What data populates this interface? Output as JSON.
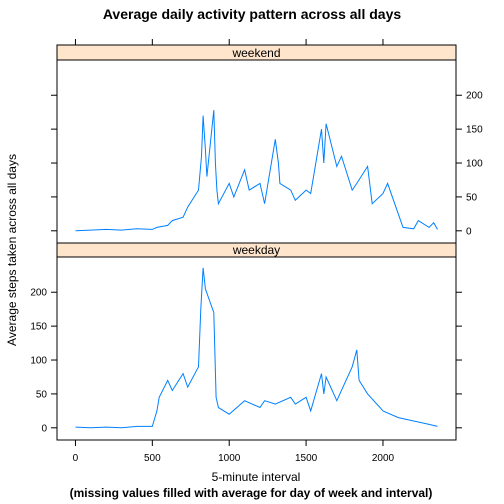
{
  "chart_data": {
    "type": "line",
    "title": "Average daily activity pattern across all days",
    "xlabel": "5-minute interval",
    "ylabel": "Average steps taken across all days",
    "caption": "(missing values filled with average for day of week and interval)",
    "xlim": [
      -120,
      2475
    ],
    "ylim": [
      -18,
      252
    ],
    "x_ticks": [
      0,
      500,
      1000,
      1500,
      2000
    ],
    "y_ticks": [
      0,
      50,
      100,
      150,
      200
    ],
    "line_color": "#0080ff",
    "strip_color": "#ffe5cc",
    "panels": [
      {
        "name": "weekend",
        "y_axis_side": "right",
        "x": [
          0,
          100,
          200,
          300,
          400,
          500,
          530,
          600,
          630,
          700,
          730,
          800,
          820,
          830,
          845,
          855,
          900,
          910,
          920,
          930,
          1000,
          1030,
          1100,
          1130,
          1200,
          1230,
          1300,
          1320,
          1330,
          1400,
          1430,
          1500,
          1530,
          1600,
          1615,
          1630,
          1700,
          1730,
          1800,
          1830,
          1900,
          1930,
          2000,
          2030,
          2100,
          2130,
          2200,
          2230,
          2300,
          2330,
          2355
        ],
        "values": [
          0,
          1,
          2,
          1,
          3,
          2,
          5,
          8,
          15,
          20,
          35,
          60,
          110,
          170,
          120,
          80,
          178,
          100,
          60,
          40,
          70,
          50,
          90,
          60,
          70,
          40,
          135,
          100,
          70,
          60,
          45,
          60,
          55,
          150,
          100,
          158,
          95,
          110,
          60,
          70,
          95,
          40,
          55,
          70,
          25,
          5,
          3,
          15,
          5,
          12,
          2
        ]
      },
      {
        "name": "weekday",
        "y_axis_side": "left",
        "x": [
          0,
          100,
          200,
          300,
          400,
          500,
          530,
          545,
          600,
          630,
          700,
          730,
          800,
          815,
          830,
          845,
          900,
          915,
          930,
          1000,
          1100,
          1200,
          1230,
          1300,
          1400,
          1430,
          1500,
          1530,
          1600,
          1615,
          1630,
          1700,
          1800,
          1830,
          1845,
          1900,
          2000,
          2100,
          2200,
          2300,
          2355
        ],
        "values": [
          1,
          0,
          1,
          0,
          2,
          2,
          25,
          45,
          70,
          55,
          80,
          60,
          90,
          175,
          236,
          205,
          170,
          45,
          30,
          20,
          40,
          30,
          40,
          35,
          45,
          35,
          45,
          25,
          80,
          50,
          75,
          40,
          90,
          115,
          70,
          50,
          25,
          15,
          10,
          5,
          2
        ]
      }
    ]
  }
}
